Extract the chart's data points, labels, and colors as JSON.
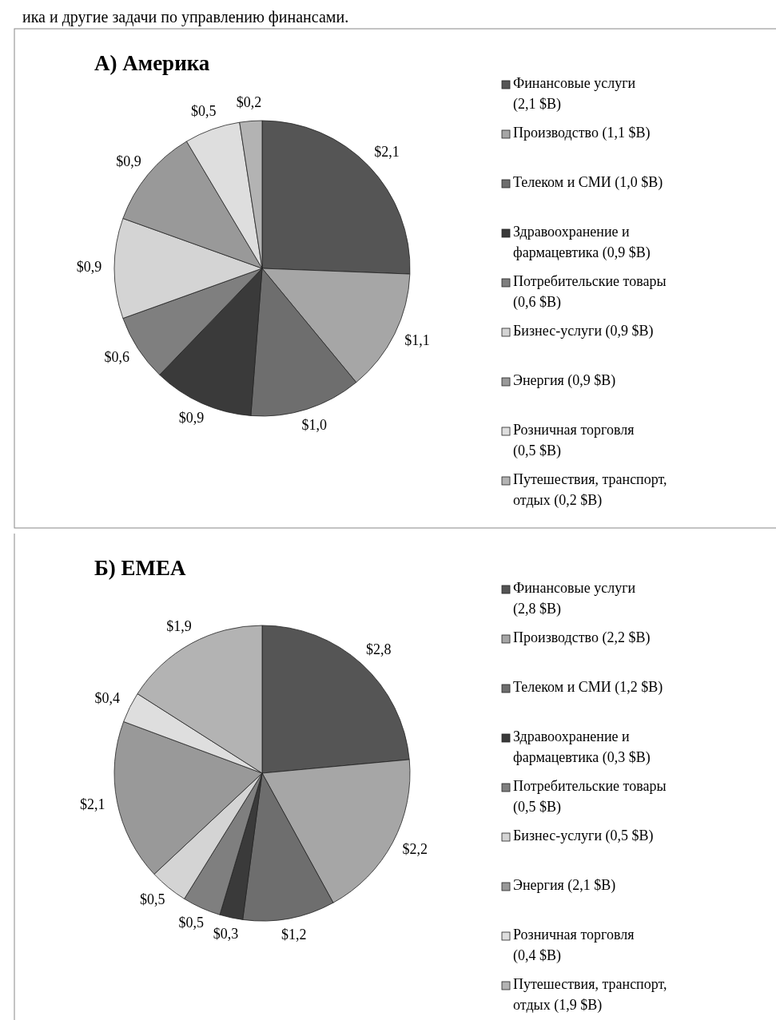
{
  "chart_data": [
    {
      "type": "pie",
      "title": "А) Америка",
      "annotations": [
        "ика и другие задачи по управлению финансами."
      ],
      "categories": [
        "Финансовые услуги (2,1 $B)",
        "Производство (1,1 $B)",
        "Телеком и СМИ (1,0 $B)",
        "Здравоохранение и фармацевтика (0,9 $B)",
        "Потребительские товары (0,6 $B)",
        "Бизнес-услуги (0,9 $B)",
        "Энергия (0,9 $B)",
        "Розничная торговля (0,5 $B)",
        "Путешествия, транспорт, отдых (0,2 $B)"
      ],
      "values": [
        2.1,
        1.1,
        1.0,
        0.9,
        0.6,
        0.9,
        0.9,
        0.5,
        0.2
      ],
      "value_labels": [
        "$2,1",
        "$1,1",
        "$1,0",
        "$0,9",
        "$0,6",
        "$0,9",
        "$0,9",
        "$0,5",
        "$0,2"
      ],
      "colors": [
        "#555555",
        "#a6a6a6",
        "#6e6e6e",
        "#3a3a3a",
        "#7f7f7f",
        "#d4d4d4",
        "#999999",
        "#dedede",
        "#b3b3b3"
      ],
      "legend": "right"
    },
    {
      "type": "pie",
      "title": "Б) EMEA",
      "categories": [
        "Финансовые услуги (2,8 $B)",
        "Производство (2,2 $B)",
        "Телеком и СМИ (1,2 $B)",
        "Здравоохранение и фармацевтика (0,3 $B)",
        "Потребительские товары (0,5 $B)",
        "Бизнес-услуги (0,5 $B)",
        "Энергия (2,1 $B)",
        "Розничная торговля (0,4 $B)",
        "Путешествия, транспорт, отдых (1,9 $B)"
      ],
      "values": [
        2.8,
        2.2,
        1.2,
        0.3,
        0.5,
        0.5,
        2.1,
        0.4,
        1.9
      ],
      "value_labels": [
        "$2,8",
        "$2,2",
        "$1,2",
        "$0,3",
        "$0,5",
        "$0,5",
        "$2,1",
        "$0,4",
        "$1,9"
      ],
      "colors": [
        "#555555",
        "#a6a6a6",
        "#6e6e6e",
        "#3a3a3a",
        "#7f7f7f",
        "#d4d4d4",
        "#999999",
        "#dedede",
        "#b3b3b3"
      ],
      "legend": "right"
    }
  ]
}
